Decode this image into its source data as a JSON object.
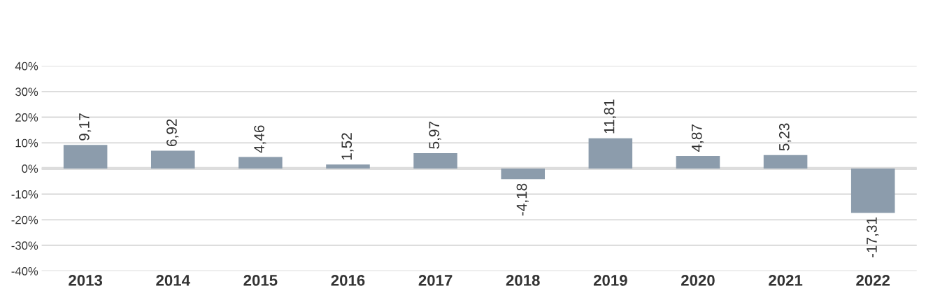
{
  "chart_data": {
    "type": "bar",
    "categories": [
      "2013",
      "2014",
      "2015",
      "2016",
      "2017",
      "2018",
      "2019",
      "2020",
      "2021",
      "2022"
    ],
    "values": [
      9.17,
      6.92,
      4.46,
      1.52,
      5.97,
      -4.18,
      11.81,
      4.87,
      5.23,
      -17.31
    ],
    "value_labels": [
      "9,17",
      "6,92",
      "4,46",
      "1,52",
      "5,97",
      "-4,18",
      "11,81",
      "4,87",
      "5,23",
      "-17,31"
    ],
    "color": "#8c9cac",
    "ylim": [
      -40,
      40
    ],
    "yticks": [
      {
        "value": -40,
        "label": "-40%"
      },
      {
        "value": -30,
        "label": "-30%"
      },
      {
        "value": -20,
        "label": "-20%"
      },
      {
        "value": -10,
        "label": "-10%"
      },
      {
        "value": 0,
        "label": "0%"
      },
      {
        "value": 10,
        "label": "10%"
      },
      {
        "value": 20,
        "label": "20%"
      },
      {
        "value": 30,
        "label": "30%"
      },
      {
        "value": 40,
        "label": "40%"
      }
    ],
    "grid": "y"
  }
}
